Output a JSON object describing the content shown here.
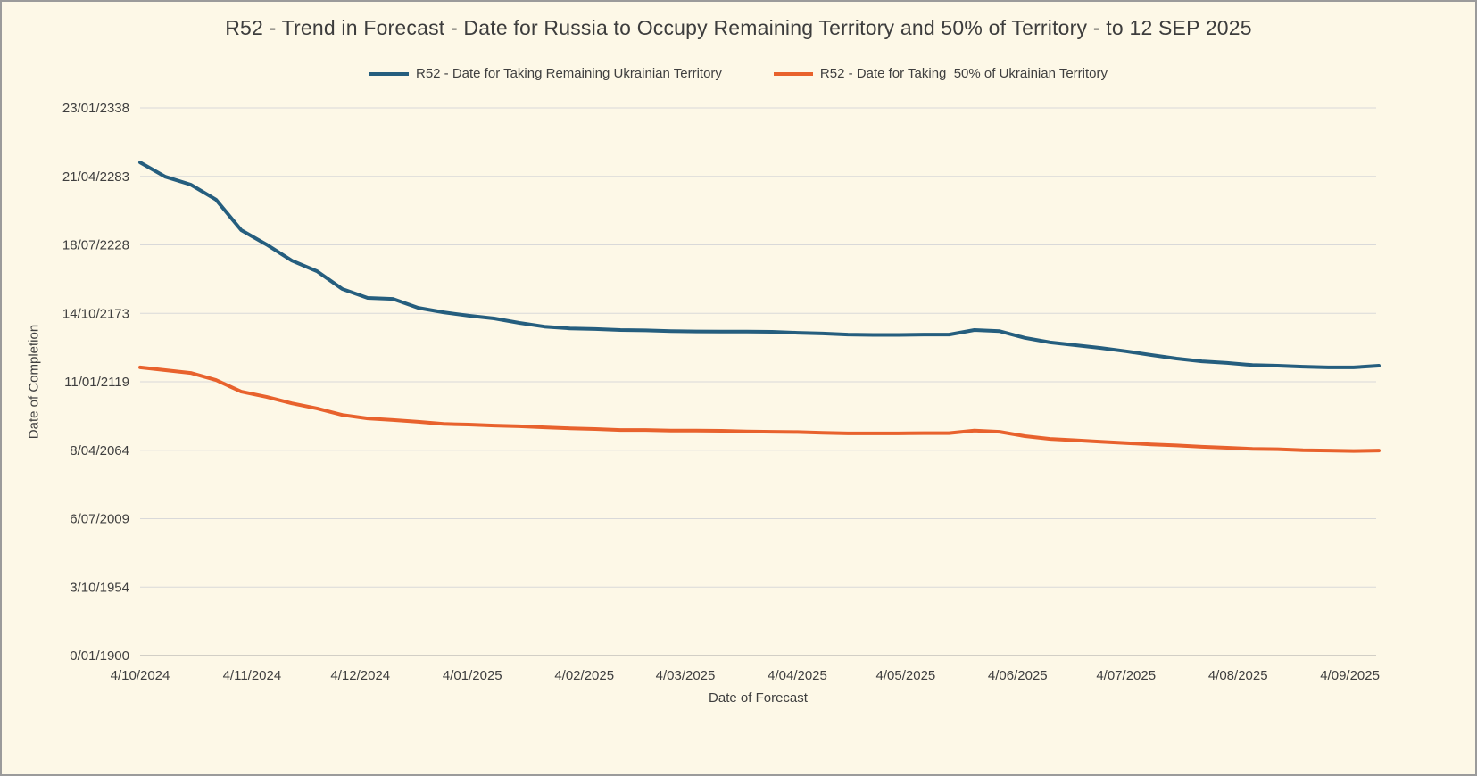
{
  "chart_data": {
    "type": "line",
    "title": "R52 - Trend in Forecast - Date for Russia to Occupy Remaining Territory and 50% of Territory - to 12 SEP 2025",
    "xlabel": "Date of Forecast",
    "ylabel": "Date of Completion",
    "legend_position": "top",
    "grid": "horizontal",
    "colors": {
      "background": "#fdf8e7",
      "gridline": "#d9d9d9",
      "axis_line": "#a6a6a6",
      "text": "#3f3f3f"
    },
    "y_tick_labels": [
      "0/01/1900",
      "3/10/1954",
      "6/07/2009",
      "8/04/2064",
      "11/01/2119",
      "14/10/2173",
      "18/07/2228",
      "21/04/2283",
      "23/01/2338"
    ],
    "ylim_years": [
      1900,
      2338.06
    ],
    "x_tick_labels": [
      "4/10/2024",
      "4/11/2024",
      "4/12/2024",
      "4/01/2025",
      "4/02/2025",
      "4/03/2025",
      "4/04/2025",
      "4/05/2025",
      "4/06/2025",
      "4/07/2025",
      "4/08/2025",
      "4/09/2025"
    ],
    "x": [
      "4/10/2024",
      "11/10/2024",
      "18/10/2024",
      "25/10/2024",
      "1/11/2024",
      "8/11/2024",
      "15/11/2024",
      "22/11/2024",
      "29/11/2024",
      "6/12/2024",
      "13/12/2024",
      "20/12/2024",
      "27/12/2024",
      "3/01/2025",
      "10/01/2025",
      "17/01/2025",
      "24/01/2025",
      "31/01/2025",
      "7/02/2025",
      "14/02/2025",
      "21/02/2025",
      "28/02/2025",
      "7/03/2025",
      "14/03/2025",
      "21/03/2025",
      "28/03/2025",
      "4/04/2025",
      "11/04/2025",
      "18/04/2025",
      "25/04/2025",
      "2/05/2025",
      "9/05/2025",
      "16/05/2025",
      "23/05/2025",
      "30/05/2025",
      "6/06/2025",
      "13/06/2025",
      "20/06/2025",
      "27/06/2025",
      "4/07/2025",
      "11/07/2025",
      "18/07/2025",
      "25/07/2025",
      "1/08/2025",
      "8/08/2025",
      "15/08/2025",
      "22/08/2025",
      "29/08/2025",
      "5/09/2025",
      "12/09/2025"
    ],
    "series": [
      {
        "name": "R52 - Date for Taking Remaining Ukrainian Territory",
        "color": "#255E7E",
        "values_year": [
          2294.5,
          2283.0,
          2276.7,
          2264.7,
          2240.3,
          2228.8,
          2215.9,
          2207.4,
          2193.2,
          2186.1,
          2185.3,
          2178.2,
          2174.6,
          2171.9,
          2169.7,
          2166.1,
          2163.1,
          2161.7,
          2161.2,
          2160.4,
          2160.1,
          2159.5,
          2159.3,
          2159.2,
          2159.2,
          2159.0,
          2158.2,
          2157.6,
          2156.8,
          2156.5,
          2156.5,
          2156.8,
          2156.8,
          2160.4,
          2159.5,
          2154.1,
          2150.5,
          2148.3,
          2146.1,
          2143.4,
          2140.4,
          2137.6,
          2135.4,
          2134.1,
          2132.4,
          2131.9,
          2131.1,
          2130.5,
          2130.5,
          2131.9
        ]
      },
      {
        "name": "R52 - Date for Taking  50% of Ukrainian Territory",
        "color": "#E8622D",
        "values_year": [
          2130.5,
          2128.3,
          2126.1,
          2120.4,
          2111.1,
          2107.0,
          2101.8,
          2097.7,
          2092.5,
          2089.7,
          2088.4,
          2087.0,
          2085.3,
          2084.8,
          2084.0,
          2083.4,
          2082.6,
          2081.8,
          2081.2,
          2080.4,
          2080.4,
          2079.9,
          2079.9,
          2079.8,
          2079.3,
          2079.0,
          2078.8,
          2078.2,
          2077.7,
          2077.7,
          2077.7,
          2077.9,
          2077.9,
          2079.9,
          2079.0,
          2075.5,
          2073.3,
          2072.2,
          2071.1,
          2070.0,
          2068.9,
          2068.1,
          2067.0,
          2066.2,
          2065.3,
          2065.1,
          2064.3,
          2064.0,
          2063.7,
          2064.0
        ]
      }
    ]
  }
}
